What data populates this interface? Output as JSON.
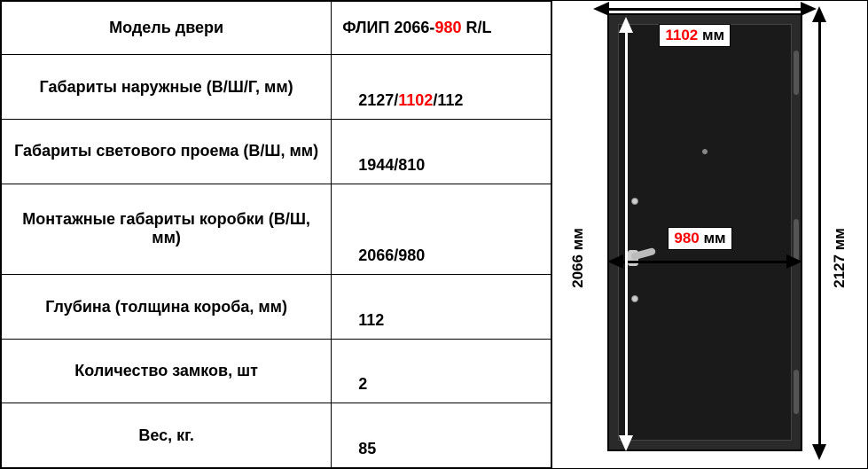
{
  "table": {
    "rows": [
      {
        "label": "Модель двери",
        "value_parts": [
          {
            "t": "ФЛИП 2066-",
            "c": "#000"
          },
          {
            "t": "980",
            "c": "#ff0000"
          },
          {
            "t": " R/L",
            "c": "#000"
          }
        ]
      },
      {
        "label": "Габариты наружные (В/Ш/Г, мм)",
        "value_parts": [
          {
            "t": "2127/",
            "c": "#000"
          },
          {
            "t": "1102",
            "c": "#ff0000"
          },
          {
            "t": "/112",
            "c": "#000"
          }
        ]
      },
      {
        "label": "Габариты светового проема (В/Ш, мм)",
        "value_parts": [
          {
            "t": "1944/810",
            "c": "#000"
          }
        ]
      },
      {
        "label": "Монтажные габариты коробки (В/Ш, мм)",
        "value_parts": [
          {
            "t": "2066/980",
            "c": "#000"
          }
        ]
      },
      {
        "label": "Глубина (толщина короба, мм)",
        "value_parts": [
          {
            "t": "112",
            "c": "#000"
          }
        ]
      },
      {
        "label": "Количество замков, шт",
        "value_parts": [
          {
            "t": "2",
            "c": "#000"
          }
        ]
      },
      {
        "label": "Вес, кг.",
        "value_parts": [
          {
            "t": "85",
            "c": "#000"
          }
        ]
      }
    ]
  },
  "diagram": {
    "top_dim": {
      "value": "1102",
      "unit": " мм",
      "value_color": "#ff0000",
      "unit_color": "#000"
    },
    "mid_dim": {
      "value": "980",
      "unit": " мм",
      "value_color": "#ff0000",
      "unit_color": "#000"
    },
    "left_dim": {
      "text": "2066 мм",
      "color": "#000"
    },
    "right_dim": {
      "text": "2127 мм",
      "color": "#000"
    },
    "door_color_outer": "#2a2a2a",
    "door_color_inner": "#1a1a1a",
    "arrow_color": "#000000"
  }
}
